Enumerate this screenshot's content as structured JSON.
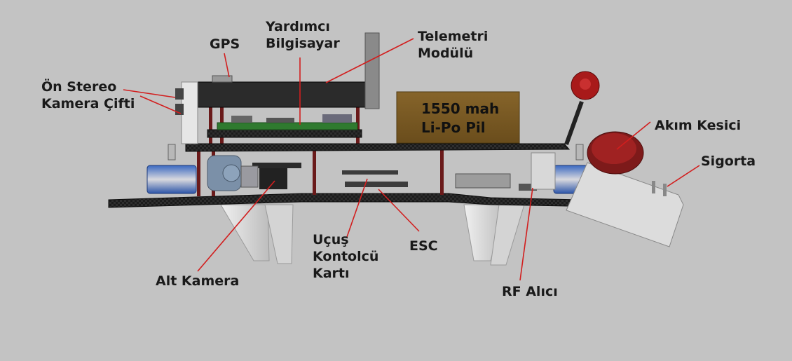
{
  "labels": {
    "gps": "GPS",
    "yardimci_line1": "Yardımcı",
    "yardimci_line2": "Bilgisayar",
    "telemetri_line1": "Telemetri",
    "telemetri_line2": "Modülü",
    "stereo_line1": "Ön Stereo",
    "stereo_line2": "Kamera Çifti",
    "akim_kesici": "Akım Kesici",
    "sigorta": "Sigorta",
    "alt_kamera": "Alt Kamera",
    "ucus_line1": "Uçuş",
    "ucus_line2": "Kontolcü",
    "ucus_line3": "Kartı",
    "esc": "ESC",
    "rf_alici": "RF Alıcı"
  },
  "battery": {
    "line1": "1550 mah",
    "line2": "Li-Po Pil"
  },
  "colors": {
    "background": "#c3c3c3",
    "annotation_line": "#d21e1e",
    "battery": "#7a5a24",
    "carbon_plate": "#1c1c1c",
    "standoff": "#6a1a1a",
    "motor_blue": "#2c54a8",
    "propeller_red": "#a81a1a",
    "landing_gear": "#e4e4e4"
  }
}
